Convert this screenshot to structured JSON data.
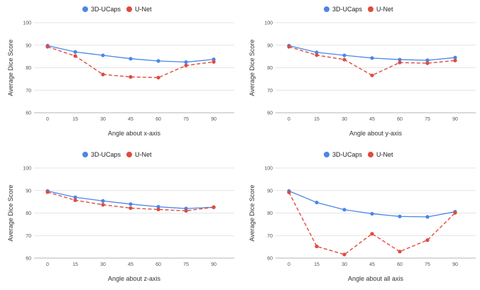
{
  "chart_data": [
    {
      "type": "line",
      "x": [
        0,
        15,
        30,
        45,
        60,
        75,
        90
      ],
      "xlabel": "Angle about x-axis",
      "ylabel": "Average Dice Score",
      "ylim": [
        60,
        100
      ],
      "yticks": [
        60,
        70,
        80,
        90,
        100
      ],
      "grid": true,
      "legend_position": "top",
      "series": [
        {
          "name": "3D-UCaps",
          "color": "#4a86e8",
          "dash": false,
          "values": [
            89.8,
            87.0,
            85.5,
            84.0,
            83.0,
            82.5,
            83.7
          ]
        },
        {
          "name": "U-Net",
          "color": "#e04a3f",
          "dash": true,
          "values": [
            89.3,
            85.2,
            77.0,
            75.9,
            75.6,
            81.0,
            82.6
          ]
        }
      ]
    },
    {
      "type": "line",
      "x": [
        0,
        15,
        30,
        45,
        60,
        75,
        90
      ],
      "xlabel": "Angle about y-axis",
      "ylabel": "Average Dice Score",
      "ylim": [
        60,
        100
      ],
      "yticks": [
        60,
        70,
        80,
        90,
        100
      ],
      "grid": true,
      "legend_position": "top",
      "series": [
        {
          "name": "3D-UCaps",
          "color": "#4a86e8",
          "dash": false,
          "values": [
            89.8,
            86.8,
            85.5,
            84.3,
            83.6,
            83.3,
            84.5
          ]
        },
        {
          "name": "U-Net",
          "color": "#e04a3f",
          "dash": true,
          "values": [
            89.3,
            85.6,
            83.6,
            76.6,
            82.3,
            82.0,
            83.2
          ]
        }
      ]
    },
    {
      "type": "line",
      "x": [
        0,
        15,
        30,
        45,
        60,
        75,
        90
      ],
      "xlabel": "Angle about z-axis",
      "ylabel": "Average Dice Score",
      "ylim": [
        60,
        100
      ],
      "yticks": [
        60,
        70,
        80,
        90,
        100
      ],
      "grid": true,
      "legend_position": "top",
      "series": [
        {
          "name": "3D-UCaps",
          "color": "#4a86e8",
          "dash": false,
          "values": [
            89.8,
            87.0,
            85.4,
            84.0,
            82.8,
            82.0,
            82.6
          ]
        },
        {
          "name": "U-Net",
          "color": "#e04a3f",
          "dash": true,
          "values": [
            89.3,
            85.7,
            83.7,
            82.2,
            81.6,
            81.0,
            82.6
          ]
        }
      ]
    },
    {
      "type": "line",
      "x": [
        0,
        15,
        30,
        45,
        60,
        75,
        90
      ],
      "xlabel": "Angle about all axis",
      "ylabel": "Average Dice Score",
      "ylim": [
        60,
        100
      ],
      "yticks": [
        60,
        70,
        80,
        90,
        100
      ],
      "grid": true,
      "legend_position": "top",
      "series": [
        {
          "name": "3D-UCaps",
          "color": "#4a86e8",
          "dash": false,
          "values": [
            89.8,
            84.7,
            81.5,
            79.7,
            78.5,
            78.3,
            80.6
          ]
        },
        {
          "name": "U-Net",
          "color": "#e04a3f",
          "dash": true,
          "values": [
            89.2,
            65.2,
            61.6,
            70.8,
            62.9,
            68.0,
            80.1
          ]
        }
      ]
    }
  ]
}
